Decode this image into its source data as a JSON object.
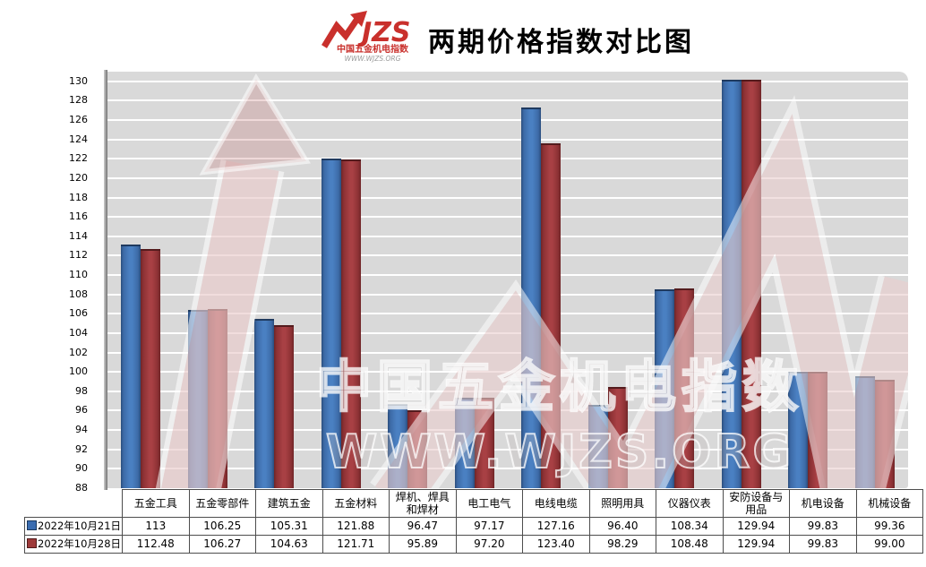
{
  "header": {
    "title": "两期价格指数对比图",
    "logo": {
      "brand": "JZS",
      "subtitle": "中国五金机电指数",
      "url": "WWW.WJZS.ORG"
    }
  },
  "watermark": {
    "line1": "中国五金机电指数",
    "line2": "WWW.WJZS.ORG"
  },
  "chart_data": {
    "type": "bar",
    "title": "两期价格指数对比图",
    "categories": [
      "五金工具",
      "五金零部件",
      "建筑五金",
      "五金材料",
      "焊机、焊具和焊材",
      "电工电气",
      "电线电缆",
      "照明用具",
      "仪器仪表",
      "安防设备与用品",
      "机电设备",
      "机械设备"
    ],
    "series": [
      {
        "name": "2022年10月21日",
        "values": [
          113,
          106.25,
          105.31,
          121.88,
          96.47,
          97.17,
          127.16,
          96.4,
          108.34,
          129.94,
          99.83,
          99.36
        ],
        "display": [
          "113",
          "106.25",
          "105.31",
          "121.88",
          "96.47",
          "97.17",
          "127.16",
          "96.40",
          "108.34",
          "129.94",
          "99.83",
          "99.36"
        ],
        "color": "#4a80c2",
        "color_mid": "#3c6aa6",
        "color_edge": "#2a4d7c",
        "color_cap": "#1f3a5f",
        "swatch": "#3a6cb0",
        "swatch_border": "#17365d"
      },
      {
        "name": "2022年10月28日",
        "values": [
          112.48,
          106.27,
          104.63,
          121.71,
          95.89,
          97.2,
          123.4,
          98.29,
          108.48,
          129.94,
          99.83,
          99.0
        ],
        "display": [
          "112.48",
          "106.27",
          "104.63",
          "121.71",
          "95.89",
          "97.20",
          "123.40",
          "98.29",
          "108.48",
          "129.94",
          "99.83",
          "99.00"
        ],
        "color": "#a84044",
        "color_mid": "#8c3134",
        "color_edge": "#6e2527",
        "color_cap": "#541b1d",
        "swatch": "#9e3a3a",
        "swatch_border": "#4f1a1a"
      }
    ],
    "ylim": [
      88,
      130
    ],
    "yticks": [
      88,
      90,
      92,
      94,
      96,
      98,
      100,
      102,
      104,
      106,
      108,
      110,
      112,
      114,
      116,
      118,
      120,
      122,
      124,
      126,
      128,
      130
    ],
    "grid": true,
    "gridline_color": "#ffffff",
    "plot_bg": "#d9d9d9",
    "legend_position": "table-left"
  }
}
